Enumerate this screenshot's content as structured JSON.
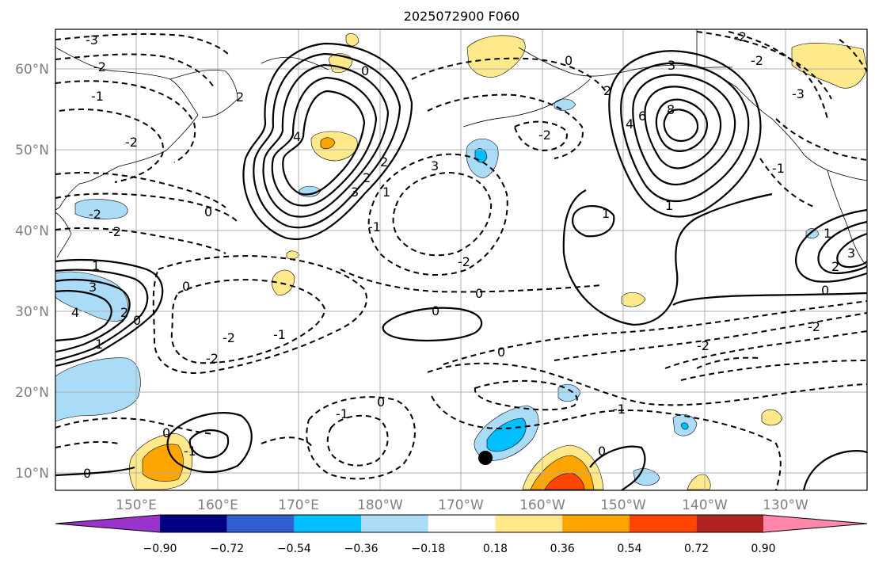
{
  "title": "2025072900 F060",
  "lat_labels": [
    "60°N",
    "50°N",
    "40°N",
    "30°N",
    "20°N",
    "10°N"
  ],
  "lon_labels": [
    "150°E",
    "160°E",
    "170°E",
    "180°W",
    "170°W",
    "160°W",
    "150°W",
    "140°W",
    "130°W"
  ],
  "colorbar": {
    "tick_labels": [
      "−0.90",
      "−0.72",
      "−0.54",
      "−0.36",
      "−0.18",
      "0.18",
      "0.36",
      "0.54",
      "0.72",
      "0.90"
    ],
    "colors": [
      "#9933cc",
      "#000080",
      "#3060d0",
      "#00bfff",
      "#aadcf8",
      "#ffffff",
      "#ffe98a",
      "#ffa500",
      "#ff4500",
      "#b22222",
      "#ff88aa"
    ]
  },
  "contour_labels": {
    "zero": "0",
    "pos1": "1",
    "pos2": "2",
    "pos3": "3",
    "pos4": "4",
    "pos6": "6",
    "pos8": "8",
    "neg1": "-1",
    "neg2": "-2",
    "neg3": "-3"
  },
  "colors": {
    "land": "#000000",
    "grid": "#b0b0b0",
    "label_gray": "#808080",
    "marker": "#000000"
  }
}
